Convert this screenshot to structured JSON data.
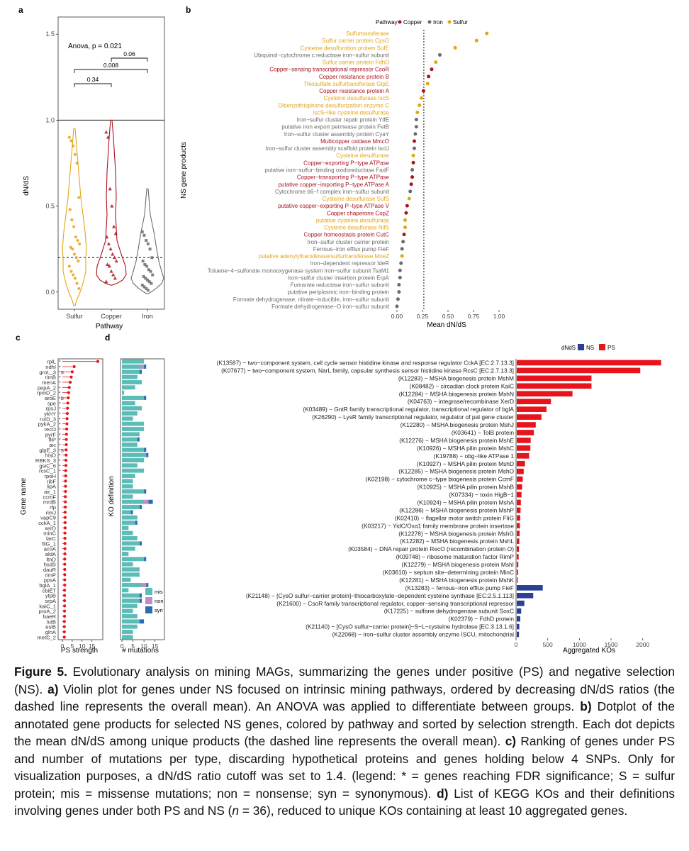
{
  "panels": {
    "a": "a",
    "b": "b",
    "c": "c",
    "d": "d"
  },
  "colors": {
    "Copper": "#a8141f",
    "Iron": "#6b6b6b",
    "Sulfur": "#e3a516",
    "NS": "#2b3f97",
    "PS": "#e8141b",
    "mis": "#5cbcb7",
    "non": "#c58bc4",
    "syn": "#2a6db5"
  },
  "panel_a": {
    "ylabel": "dN/dS",
    "xlabel": "Pathway",
    "categories": [
      "Sulfur",
      "Copper",
      "Iron"
    ],
    "y_ticks": [
      "0.0",
      "0.5",
      "1.0",
      "1.5"
    ],
    "anova": "Anova, p = 0.021",
    "brackets": [
      {
        "from": "Sulfur",
        "to": "Copper",
        "label": "0.34"
      },
      {
        "from": "Sulfur",
        "to": "Iron",
        "label": "0.008"
      },
      {
        "from": "Copper",
        "to": "Iron",
        "label": "0.06"
      }
    ],
    "ref_solid": 1.0,
    "ref_dashed": 0.2,
    "ylim": [
      -0.1,
      1.6
    ],
    "points": {
      "Sulfur": [
        0.9,
        0.88,
        0.85,
        0.8,
        0.75,
        0.55,
        0.48,
        0.42,
        0.38,
        0.32,
        0.3,
        0.28,
        0.26,
        0.25,
        0.22,
        0.2,
        0.18,
        0.15,
        0.12,
        0.1,
        0.08,
        0.05,
        0.02
      ],
      "Copper": [
        0.93,
        0.9,
        0.6,
        0.5,
        0.38,
        0.34,
        0.32,
        0.28,
        0.25,
        0.22,
        0.2,
        0.18,
        0.16,
        0.15,
        0.12,
        0.1,
        0.08,
        0.06
      ],
      "Iron": [
        0.35,
        0.33,
        0.3,
        0.28,
        0.25,
        0.2,
        0.18,
        0.16,
        0.15,
        0.13,
        0.12,
        0.1,
        0.09,
        0.08,
        0.07,
        0.06,
        0.05,
        0.04,
        0.03,
        0.02,
        0.01
      ]
    }
  },
  "panel_b": {
    "ylabel": "NS gene products",
    "xlabel": "Mean dN/dS",
    "x_ticks": [
      "0.00",
      "0.25",
      "0.50",
      "0.75",
      "1.00"
    ],
    "xlim": [
      0,
      1.0
    ],
    "mean_line": 0.18,
    "legend_title": "Pathway",
    "legend": [
      "Copper",
      "Iron",
      "Sulfur"
    ],
    "items": [
      {
        "label": "Sulfurtransferase",
        "p": "Sulfur",
        "v": 0.88
      },
      {
        "label": "Sulfur carrier protein CysO",
        "p": "Sulfur",
        "v": 0.78
      },
      {
        "label": "Cysteine desulfuration protein SufE",
        "p": "Sulfur",
        "v": 0.57
      },
      {
        "label": "Ubiquinol−cytochrome c reductase iron−sulfur subunit",
        "p": "Iron",
        "v": 0.42
      },
      {
        "label": "Sulfur carrier protein FdhD",
        "p": "Sulfur",
        "v": 0.38
      },
      {
        "label": "Copper−sensing transcriptional repressor CsoR",
        "p": "Copper",
        "v": 0.34
      },
      {
        "label": "Copper resistance protein B",
        "p": "Copper",
        "v": 0.31
      },
      {
        "label": "Thiosulfate sulfurtransferase GlpE",
        "p": "Sulfur",
        "v": 0.3
      },
      {
        "label": "Copper resistance protein A",
        "p": "Copper",
        "v": 0.26
      },
      {
        "label": "Cysteine desulfurase IscS",
        "p": "Sulfur",
        "v": 0.24
      },
      {
        "label": "Dibenzothiophene desulfurization enzyme C",
        "p": "Sulfur",
        "v": 0.22
      },
      {
        "label": "IscS−like cysteine desulfurase",
        "p": "Sulfur",
        "v": 0.2
      },
      {
        "label": "Iron−sulfur cluster repair protein YtfE",
        "p": "Iron",
        "v": 0.19
      },
      {
        "label": "putative iron export permease protein FetB",
        "p": "Iron",
        "v": 0.19
      },
      {
        "label": "Iron−sulfur cluster assembly protein CyaY",
        "p": "Iron",
        "v": 0.18
      },
      {
        "label": "Multicopper oxidase MmcO",
        "p": "Copper",
        "v": 0.17
      },
      {
        "label": "Iron−sulfur cluster assembly scaffold protein IscU",
        "p": "Iron",
        "v": 0.17
      },
      {
        "label": "Cysteine desulfurase",
        "p": "Sulfur",
        "v": 0.16
      },
      {
        "label": "Copper−exporting P−type ATPase",
        "p": "Copper",
        "v": 0.16
      },
      {
        "label": "putative iron−sulfur−binding oxidoreductase FadF",
        "p": "Iron",
        "v": 0.15
      },
      {
        "label": "Copper−transporting P−type ATPase",
        "p": "Copper",
        "v": 0.15
      },
      {
        "label": "putative copper−importing P−type ATPase A",
        "p": "Copper",
        "v": 0.14
      },
      {
        "label": "Cytochrome b6−f complex iron−sulfur subunit",
        "p": "Iron",
        "v": 0.13
      },
      {
        "label": "Cysteine desulfurase SufS",
        "p": "Sulfur",
        "v": 0.12
      },
      {
        "label": "putative copper−exporting P−type ATPase V",
        "p": "Copper",
        "v": 0.1
      },
      {
        "label": "Copper chaperone CopZ",
        "p": "Copper",
        "v": 0.09
      },
      {
        "label": "putative cysteine desulfurase",
        "p": "Sulfur",
        "v": 0.08
      },
      {
        "label": "Cysteine desulfurase NifS",
        "p": "Sulfur",
        "v": 0.08
      },
      {
        "label": "Copper homeostasis protein CutC",
        "p": "Copper",
        "v": 0.07
      },
      {
        "label": "Iron−sulfur cluster carrier protein",
        "p": "Iron",
        "v": 0.06
      },
      {
        "label": "Ferrous−iron efflux pump FieF",
        "p": "Iron",
        "v": 0.05
      },
      {
        "label": "putative adenylyltransferase/sulfurtransferase MoeZ",
        "p": "Sulfur",
        "v": 0.05
      },
      {
        "label": "Iron−dependent repressor IdeR",
        "p": "Iron",
        "v": 0.04
      },
      {
        "label": "Toluene−4−sulfonate monooxygenase system iron−sulfur subunit TsaM1",
        "p": "Iron",
        "v": 0.03
      },
      {
        "label": "Iron−sulfur cluster insertion protein ErpA",
        "p": "Iron",
        "v": 0.03
      },
      {
        "label": "Fumarate reductase iron−sulfur subunit",
        "p": "Iron",
        "v": 0.02
      },
      {
        "label": "putative periplasmic iron−binding protein",
        "p": "Iron",
        "v": 0.02
      },
      {
        "label": "Formate dehydrogenase, nitrate−inducible, iron−sulfur subunit",
        "p": "Iron",
        "v": 0.01
      },
      {
        "label": "Formate dehydrogenase−O iron−sulfur subunit",
        "p": "Iron",
        "v": 0.0
      }
    ]
  },
  "panel_c": {
    "ylabel": "Gene name",
    "xlabel": "PS strength",
    "x_ticks": [
      "0",
      "5",
      "10",
      "15"
    ],
    "genes": [
      "rplL",
      "ndhI",
      "groL_3",
      "rimB",
      "menA",
      "pepA_2",
      "rpmD_2",
      "aroE",
      "spe",
      "rpsJ",
      "ykhY",
      "rutD_3",
      "pykA_2",
      "recO",
      "pyrF",
      "fliP",
      "aic",
      "glpE_3",
      "hisD",
      "RBKS_3",
      "gsiC_6",
      "rcsC_1",
      "rpoH",
      "ribF",
      "lipA",
      "air_1",
      "ccmF",
      "mrdB",
      "rfp",
      "rimJ",
      "vapC9",
      "cckA_1",
      "xerD",
      "minC",
      "larC",
      "fliG_1",
      "acoA",
      "aldA",
      "ltnD",
      "hsdS",
      "dauR",
      "rimP",
      "ppsA",
      "bglA_1",
      "cbiET",
      "ytpB",
      "srpA",
      "kaiC_1",
      "proA_2",
      "baeR",
      "lutB",
      "esiB",
      "glnA",
      "metC_2"
    ],
    "strength": [
      18,
      6,
      5,
      4.5,
      4,
      3.5,
      3.2,
      3,
      2.8,
      2.6,
      2.5,
      2.4,
      2.3,
      2.2,
      2.1,
      2.0,
      2.0,
      1.9,
      1.9,
      1.8,
      1.8,
      1.7,
      1.7,
      1.6,
      1.6,
      1.6,
      1.5,
      1.5,
      1.5,
      1.4,
      1.4,
      1.4,
      1.4,
      1.3,
      1.3,
      1.3,
      1.3,
      1.3,
      1.2,
      1.2,
      1.2,
      1.2,
      1.2,
      1.2,
      1.1,
      1.1,
      1.1,
      1.1,
      1.1,
      1.1,
      1.0,
      1.0,
      1.0,
      1.0
    ],
    "marks": [
      "*",
      "*",
      "*S",
      "*",
      "*",
      "*",
      "*",
      "*S",
      "*",
      "*",
      "*",
      "*",
      "*",
      "*",
      "*",
      "*",
      "*",
      "*S",
      "*",
      "*",
      "*",
      "*",
      "",
      "",
      "",
      "",
      "",
      "",
      "",
      "",
      "",
      "",
      "",
      "",
      "",
      "",
      "",
      "",
      "",
      "",
      "",
      "",
      "",
      "",
      "",
      "",
      "",
      "",
      "",
      "",
      "",
      "",
      "",
      ""
    ]
  },
  "panel_c2": {
    "ylabel": "KO definition",
    "xlabel": "# mutations",
    "x_ticks": [
      "0",
      "5",
      "10",
      "15"
    ],
    "legend": [
      "mis",
      "non",
      "syn"
    ],
    "mis": [
      10,
      9,
      8,
      7,
      9,
      6,
      1,
      10,
      6,
      9,
      7,
      5,
      10,
      10,
      8,
      7,
      7,
      10,
      11,
      10,
      7,
      10,
      6,
      5,
      5,
      10,
      5,
      10,
      8,
      4,
      7,
      6,
      3,
      5,
      7,
      8,
      6,
      3,
      10,
      5,
      8,
      8,
      4,
      9,
      3,
      8,
      8,
      7,
      5,
      7,
      8,
      7,
      5,
      5
    ],
    "non": [
      0,
      1,
      0,
      0,
      0,
      0,
      0,
      0,
      0,
      0,
      0,
      0,
      0,
      0,
      0,
      0,
      0,
      0,
      0,
      0,
      0,
      0,
      0,
      0,
      0,
      0,
      0,
      2,
      0,
      0,
      0,
      0,
      0,
      0,
      0,
      0,
      0,
      0,
      0,
      0,
      0,
      0,
      0,
      2,
      0,
      0,
      0,
      0,
      0,
      0,
      0,
      0,
      0,
      0
    ],
    "syn": [
      0,
      1,
      1,
      0,
      0,
      0,
      0,
      1,
      0,
      0,
      0,
      0,
      0,
      0,
      0,
      1,
      0,
      1,
      1,
      0,
      0,
      0,
      0,
      0,
      0,
      1,
      0,
      2,
      1,
      1,
      0,
      1,
      0,
      0,
      0,
      1,
      0,
      0,
      1,
      0,
      0,
      0,
      0,
      1,
      0,
      1,
      1,
      0,
      0,
      0,
      2,
      0,
      0,
      0
    ]
  },
  "panel_d": {
    "legend_title": "dNdS",
    "legend": [
      "NS",
      "PS"
    ],
    "xlabel": "Aggregated KOs",
    "x_ticks": [
      "0",
      "500",
      "1000",
      "1500",
      "2000"
    ],
    "xlim": [
      0,
      2350
    ],
    "items": [
      {
        "label": "(K13587) − two−component system, cell cycle sensor histidine kinase and response regulator CckA [EC:2.7.13.3]",
        "g": "PS",
        "v": 2280
      },
      {
        "label": "(K07677) − two−component system, NarL family, capsular synthesis sensor histidine kinase RcsC [EC:2.7.13.3]",
        "g": "PS",
        "v": 1950
      },
      {
        "label": "(K12283) − MSHA biogenesis protein MshM",
        "g": "PS",
        "v": 1180
      },
      {
        "label": "(K08482) − circadian clock protein KaiC",
        "g": "PS",
        "v": 1180
      },
      {
        "label": "(K12284) − MSHA biogenesis protein MshN",
        "g": "PS",
        "v": 880
      },
      {
        "label": "(K04763) − integrase/recombinase XerD",
        "g": "PS",
        "v": 540
      },
      {
        "label": "(K03489) − GntR family transcriptional regulator, transcriptional regulator of bglA",
        "g": "PS",
        "v": 470
      },
      {
        "label": "(K26290) − LysR family transcriptional regulator, regulator of pal gene cluster",
        "g": "PS",
        "v": 390
      },
      {
        "label": "(K12280) − MSHA biogenesis protein MshJ",
        "g": "PS",
        "v": 300
      },
      {
        "label": "(K03641) − TolB protein",
        "g": "PS",
        "v": 270
      },
      {
        "label": "(K12276) − MSHA biogenesis protein MshE",
        "g": "PS",
        "v": 220
      },
      {
        "label": "(K10926) − MSHA pilin protein MshC",
        "g": "PS",
        "v": 215
      },
      {
        "label": "(K19788) − obg−like ATPase 1",
        "g": "PS",
        "v": 195
      },
      {
        "label": "(K10927) − MSHA pilin protein MshD",
        "g": "PS",
        "v": 130
      },
      {
        "label": "(K12285) − MSHA biogenesis protein MshO",
        "g": "PS",
        "v": 110
      },
      {
        "label": "(K02198) − cytochrome c−type biogenesis protein CcmF",
        "g": "PS",
        "v": 95
      },
      {
        "label": "(K10925) − MSHA pilin protein MshB",
        "g": "PS",
        "v": 85
      },
      {
        "label": "(K07334) − toxin HigB−1",
        "g": "PS",
        "v": 75
      },
      {
        "label": "(K10924) − MSHA pilin protein MshA",
        "g": "PS",
        "v": 65
      },
      {
        "label": "(K12286) − MSHA biogenesis protein MshP",
        "g": "PS",
        "v": 60
      },
      {
        "label": "(K02410) − flagellar motor switch protein FliG",
        "g": "PS",
        "v": 55
      },
      {
        "label": "(K03217) − YidC/Oxa1 family membrane protein insertase",
        "g": "PS",
        "v": 50
      },
      {
        "label": "(K12278) − MSHA biogenesis protein MshG",
        "g": "PS",
        "v": 45
      },
      {
        "label": "(K12282) − MSHA biogenesis protein MshL",
        "g": "PS",
        "v": 40
      },
      {
        "label": "(K03584) − DNA repair protein RecO (recombination protein O)",
        "g": "PS",
        "v": 35
      },
      {
        "label": "(K09748) − ribosome maturation factor RimP",
        "g": "PS",
        "v": 30
      },
      {
        "label": "(K12279) − MSHA biogenesis protein MshI",
        "g": "PS",
        "v": 25
      },
      {
        "label": "(K03610) − septum site−determining protein MinC",
        "g": "PS",
        "v": 20
      },
      {
        "label": "(K12281) − MSHA biogenesis protein MshK",
        "g": "PS",
        "v": 15
      },
      {
        "label": "(K13283) − ferrous−iron efflux pump FieF",
        "g": "NS",
        "v": 410
      },
      {
        "label": "(K21148) − [CysO sulfur−carrier protein]−thiocarboxylate−dependent cysteine synthase [EC:2.5.1.113]",
        "g": "NS",
        "v": 260
      },
      {
        "label": "(K21600) − CsoR family transcriptional regulator, copper−sensing transcriptional repressor",
        "g": "NS",
        "v": 120
      },
      {
        "label": "(K17225) − sulfane dehydrogenase subunit SoxC",
        "g": "NS",
        "v": 70
      },
      {
        "label": "(K02379) − FdhD protein",
        "g": "NS",
        "v": 55
      },
      {
        "label": "(K21140) − [CysO sulfur−carrier protein]−S−L−cysteine hydrolase [EC:3.13.1.6]",
        "g": "NS",
        "v": 40
      },
      {
        "label": "(K22068) − iron−sulfur cluster assembly enzyme ISCU, mitochondrial",
        "g": "NS",
        "v": 35
      }
    ]
  },
  "caption": {
    "fig": "Figure 5.",
    "s1": " Evolutionary analysis on mining MAGs, summarizing the genes under positive (PS) and negative selection (NS). ",
    "a": "a)",
    "s2": " Violin plot for genes under NS focused on intrinsic mining pathways, ordered by decreasing dN/dS ratios (the dashed line represents the overall mean). An ANOVA was applied to differentiate between groups. ",
    "b": "b)",
    "s3": " Dotplot of the annotated gene products for selected NS genes, colored by pathway and sorted by selection strength. Each dot depicts the mean dN/dS among unique products (the dashed line represents the overall mean). ",
    "c": "c)",
    "s4": " Ranking of genes under PS and number of mutations per type, discarding hypothetical proteins and genes holding below 4 SNPs. Only for visualization purposes, a dN/dS ratio cutoff was set to 1.4. (legend: * = genes reaching FDR significance; S = sulfur protein; mis = missense mutations; non = nonsense; syn = synonymous). ",
    "d": "d)",
    "s5": " List of KEGG KOs and their definitions involving genes under both PS and NS (",
    "n": "n",
    "s6": " = 36), reduced to unique KOs containing at least 10 aggregated genes."
  }
}
